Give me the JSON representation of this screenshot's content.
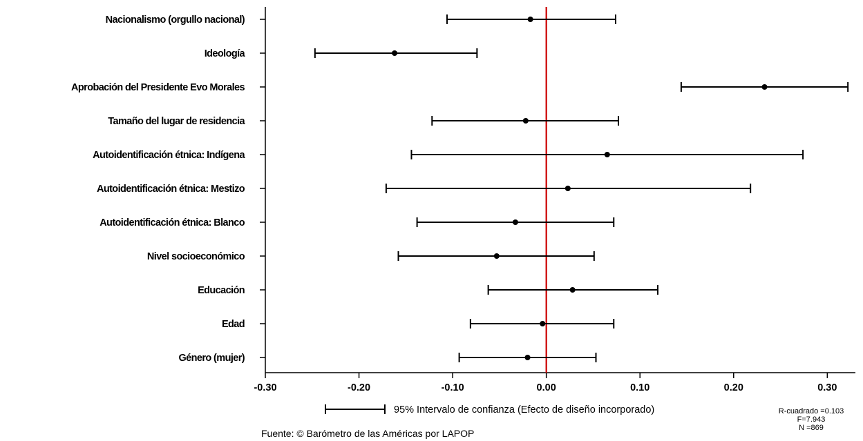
{
  "chart_data": {
    "type": "scatter",
    "subtype": "coefficient-plot-with-confidence-intervals",
    "categories": [
      "Nacionalismo (orgullo nacional)",
      "Ideología",
      "Aprobación del Presidente Evo Morales",
      "Tamaño del lugar de residencia",
      "Autoidentificación étnica: Indígena",
      "Autoidentificación étnica: Mestizo",
      "Autoidentificación étnica: Blanco",
      "Nivel socioeconómico",
      "Educación",
      "Edad",
      "Género (mujer)"
    ],
    "estimates": [
      -0.017,
      -0.162,
      0.233,
      -0.022,
      0.065,
      0.023,
      -0.033,
      -0.053,
      0.028,
      -0.004,
      -0.02
    ],
    "ci_lower": [
      -0.106,
      -0.247,
      0.144,
      -0.122,
      -0.144,
      -0.171,
      -0.138,
      -0.158,
      -0.062,
      -0.081,
      -0.093
    ],
    "ci_upper": [
      0.074,
      -0.074,
      0.322,
      0.077,
      0.274,
      0.218,
      0.072,
      0.051,
      0.119,
      0.072,
      0.053
    ],
    "xlim": [
      -0.3,
      0.33
    ],
    "xticks": [
      -0.3,
      -0.2,
      -0.1,
      0.0,
      0.1,
      0.2,
      0.3
    ],
    "xtick_labels": [
      "-0.30",
      "-0.20",
      "-0.10",
      "0.00",
      "0.10",
      "0.20",
      "0.30"
    ],
    "reference_line": 0.0,
    "reference_line_color": "#cc0000",
    "point_color": "#000000",
    "grid": false,
    "legend": {
      "text": "95% Intervalo de confianza (Efecto de diseño incorporado)",
      "placement": "bottom"
    },
    "stats": {
      "r2": "R-cuadrado =0.103",
      "f": "F=7.943",
      "n": "N =869"
    },
    "source": "Fuente: © Barómetro de las Américas por LAPOP"
  }
}
